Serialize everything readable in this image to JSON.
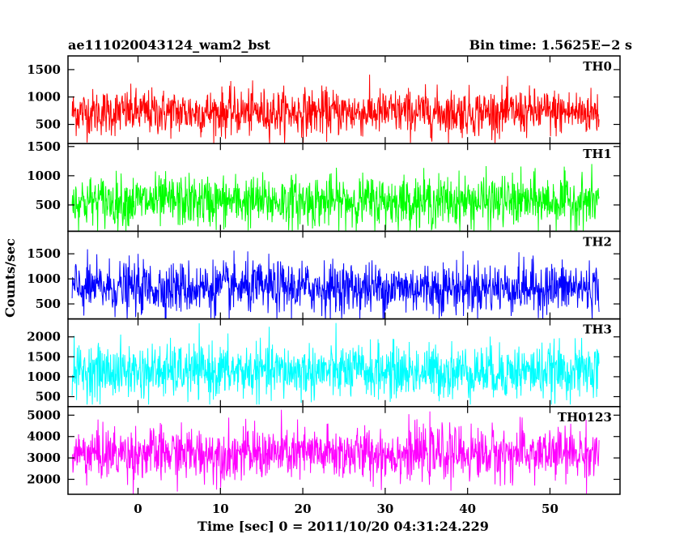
{
  "header": {
    "left_title": "ae111020043124_wam2_bst",
    "right_title": "Bin time: 1.5625E−2 s"
  },
  "axes": {
    "xlabel": "Time [sec] 0 = 2011/10/20 04:31:24.229",
    "ylabel": "Counts/sec",
    "xlim": [
      -8.5,
      58.5
    ],
    "xticks": [
      0,
      10,
      20,
      30,
      40,
      50
    ],
    "xtick_labels": [
      "0",
      "10",
      "20",
      "30",
      "40",
      "50"
    ]
  },
  "chart_data": {
    "type": "line",
    "title": "ae111020043124_wam2_bst",
    "xlabel": "Time [sec] 0 = 2011/10/20 04:31:24.229",
    "ylabel": "Counts/sec",
    "x_range": [
      -8.5,
      58.5
    ],
    "data_x_range": [
      -8,
      56
    ],
    "bin_time_s": 0.015625,
    "grid": false,
    "panels": [
      {
        "name": "TH0",
        "color": "#ff0000",
        "ylim": [
          150,
          1750
        ],
        "yticks": [
          500,
          1000,
          1500
        ],
        "ytick_labels": [
          "500",
          "1000",
          "1500"
        ],
        "mean": 720,
        "sigma": 210,
        "min": 150,
        "max": 1750
      },
      {
        "name": "TH1",
        "color": "#00ff00",
        "ylim": [
          50,
          1550
        ],
        "yticks": [
          500,
          1000,
          1500
        ],
        "ytick_labels": [
          "500",
          "1000",
          "1500"
        ],
        "mean": 560,
        "sigma": 220,
        "min": 50,
        "max": 1550
      },
      {
        "name": "TH2",
        "color": "#0000ff",
        "ylim": [
          200,
          1950
        ],
        "yticks": [
          500,
          1000,
          1500
        ],
        "ytick_labels": [
          "500",
          "1000",
          "1500"
        ],
        "mean": 820,
        "sigma": 260,
        "min": 200,
        "max": 1950
      },
      {
        "name": "TH3",
        "color": "#00ffff",
        "ylim": [
          250,
          2450
        ],
        "yticks": [
          500,
          1000,
          1500,
          2000
        ],
        "ytick_labels": [
          "500",
          "1000",
          "1500",
          "2000"
        ],
        "mean": 1130,
        "sigma": 340,
        "min": 300,
        "max": 2450
      },
      {
        "name": "TH0123",
        "color": "#ff00ff",
        "ylim": [
          1300,
          5400
        ],
        "yticks": [
          2000,
          3000,
          4000,
          5000
        ],
        "ytick_labels": [
          "2000",
          "3000",
          "4000",
          "5000"
        ],
        "mean": 3200,
        "sigma": 620,
        "min": 1300,
        "max": 5400
      }
    ]
  }
}
